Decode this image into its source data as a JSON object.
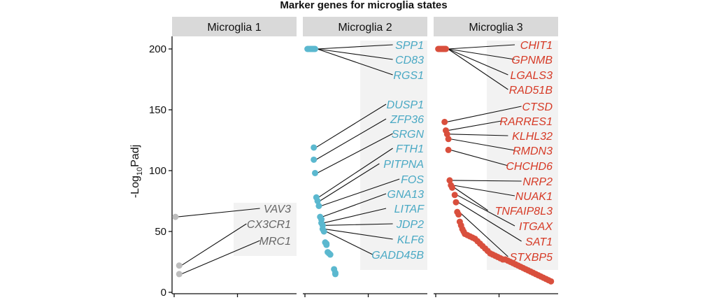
{
  "chart_data": {
    "type": "scatter",
    "title": "Marker genes for microglia states",
    "ylabel": "-Log10Padj",
    "ylim": [
      0,
      200
    ],
    "yticks": [
      0,
      50,
      100,
      150,
      200
    ],
    "xlim": [
      0,
      95
    ],
    "xticks": [
      0,
      50
    ],
    "colors": {
      "Microglia 1": "#bdbdbd",
      "Microglia 2": "#5bb8cf",
      "Microglia 3": "#d94f3d"
    },
    "facets": [
      {
        "name": "Microglia 1",
        "label_color": "#666666",
        "points": [
          [
            1,
            62
          ],
          [
            4,
            22
          ],
          [
            4,
            15
          ]
        ],
        "labels": [
          {
            "gene": "VAV3",
            "x": 1,
            "y": 62
          },
          {
            "gene": "CX3CR1",
            "x": 4,
            "y": 22
          },
          {
            "gene": "MRC1",
            "x": 4,
            "y": 15
          }
        ]
      },
      {
        "name": "Microglia 2",
        "label_color": "#4aa9c4",
        "points": [
          [
            2,
            200
          ],
          [
            3,
            200
          ],
          [
            4,
            200
          ],
          [
            5,
            200
          ],
          [
            6,
            200
          ],
          [
            7,
            200
          ],
          [
            8,
            200
          ],
          [
            7,
            119
          ],
          [
            7,
            109
          ],
          [
            8,
            98
          ],
          [
            9,
            78
          ],
          [
            10,
            75
          ],
          [
            11,
            71
          ],
          [
            12,
            62
          ],
          [
            13,
            60
          ],
          [
            13,
            57
          ],
          [
            14,
            55
          ],
          [
            14,
            52
          ],
          [
            15,
            50
          ],
          [
            16,
            41
          ],
          [
            17,
            40
          ],
          [
            17,
            39
          ],
          [
            18,
            33
          ],
          [
            19,
            32
          ],
          [
            20,
            31
          ],
          [
            23,
            19
          ],
          [
            24,
            16
          ],
          [
            24,
            15
          ]
        ],
        "labels": [
          {
            "gene": "SPP1",
            "x": 8,
            "y": 200
          },
          {
            "gene": "CD83",
            "x": 8,
            "y": 200
          },
          {
            "gene": "RGS1",
            "x": 8,
            "y": 200
          },
          {
            "gene": "DUSP1",
            "x": 7,
            "y": 119
          },
          {
            "gene": "ZFP36",
            "x": 7,
            "y": 109
          },
          {
            "gene": "SRGN",
            "x": 8,
            "y": 98
          },
          {
            "gene": "FTH1",
            "x": 9,
            "y": 78
          },
          {
            "gene": "PITPNA",
            "x": 10,
            "y": 75
          },
          {
            "gene": "FOS",
            "x": 11,
            "y": 71
          },
          {
            "gene": "GNA13",
            "x": 12,
            "y": 62
          },
          {
            "gene": "LITAF",
            "x": 13,
            "y": 57
          },
          {
            "gene": "JDP2",
            "x": 14,
            "y": 55
          },
          {
            "gene": "KLF6",
            "x": 14,
            "y": 52
          },
          {
            "gene": "GADD45B",
            "x": 15,
            "y": 50
          }
        ]
      },
      {
        "name": "Microglia 3",
        "label_color": "#d63a26",
        "points": [
          [
            2,
            200
          ],
          [
            3,
            200
          ],
          [
            4,
            200
          ],
          [
            5,
            200
          ],
          [
            6,
            200
          ],
          [
            7,
            200
          ],
          [
            8,
            200
          ],
          [
            7,
            140
          ],
          [
            8,
            133
          ],
          [
            9,
            130
          ],
          [
            10,
            126
          ],
          [
            10,
            117
          ],
          [
            11,
            92
          ],
          [
            12,
            88
          ],
          [
            13,
            86
          ],
          [
            15,
            80
          ],
          [
            16,
            74
          ],
          [
            17,
            66
          ],
          [
            18,
            64
          ],
          [
            19,
            58
          ],
          [
            20,
            55
          ],
          [
            21,
            52
          ],
          [
            22,
            50
          ],
          [
            23,
            48
          ],
          [
            25,
            47
          ],
          [
            27,
            46
          ],
          [
            29,
            45
          ],
          [
            31,
            44
          ],
          [
            33,
            42
          ],
          [
            35,
            40
          ],
          [
            37,
            38
          ],
          [
            39,
            36
          ],
          [
            41,
            34
          ],
          [
            43,
            32
          ],
          [
            45,
            31
          ],
          [
            47,
            30
          ],
          [
            49,
            29
          ],
          [
            51,
            28
          ],
          [
            53,
            27
          ],
          [
            55,
            27
          ],
          [
            57,
            26
          ],
          [
            59,
            25
          ],
          [
            61,
            24
          ],
          [
            63,
            23
          ],
          [
            65,
            22
          ],
          [
            67,
            21
          ],
          [
            69,
            20
          ],
          [
            71,
            19
          ],
          [
            73,
            18
          ],
          [
            75,
            17
          ],
          [
            77,
            16
          ],
          [
            79,
            15
          ],
          [
            81,
            14
          ],
          [
            83,
            13
          ],
          [
            85,
            12
          ],
          [
            87,
            11
          ],
          [
            89,
            10
          ],
          [
            91,
            9
          ]
        ],
        "labels": [
          {
            "gene": "CHIT1",
            "x": 8,
            "y": 200
          },
          {
            "gene": "GPNMB",
            "x": 8,
            "y": 200
          },
          {
            "gene": "LGALS3",
            "x": 8,
            "y": 200
          },
          {
            "gene": "RAD51B",
            "x": 8,
            "y": 200
          },
          {
            "gene": "CTSD",
            "x": 7,
            "y": 140
          },
          {
            "gene": "RARRES1",
            "x": 8,
            "y": 133
          },
          {
            "gene": "KLHL32",
            "x": 9,
            "y": 130
          },
          {
            "gene": "RMDN3",
            "x": 10,
            "y": 126
          },
          {
            "gene": "CHCHD6",
            "x": 10,
            "y": 117
          },
          {
            "gene": "NRP2",
            "x": 11,
            "y": 92
          },
          {
            "gene": "NUAK1",
            "x": 12,
            "y": 88
          },
          {
            "gene": "TNFAIP8L3",
            "x": 13,
            "y": 86
          },
          {
            "gene": "ITGAX",
            "x": 15,
            "y": 80
          },
          {
            "gene": "SAT1",
            "x": 16,
            "y": 74
          },
          {
            "gene": "STXBP5",
            "x": 17,
            "y": 66
          }
        ]
      }
    ]
  }
}
